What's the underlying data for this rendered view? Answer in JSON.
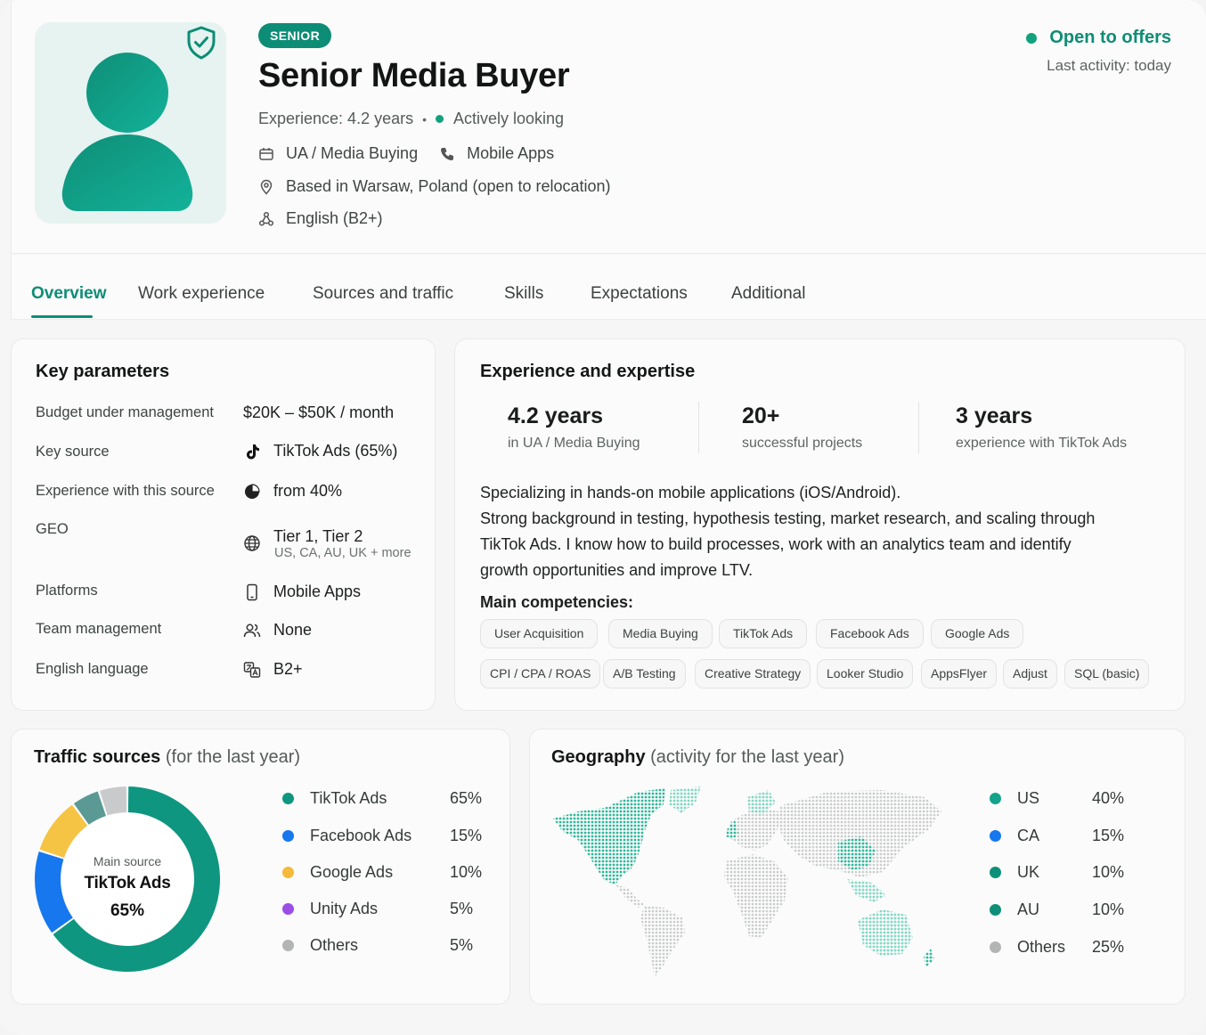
{
  "profile": {
    "badge": "SENIOR",
    "title": "Senior Media Buyer",
    "experience": "Experience: 4.2 years",
    "status": "Actively looking",
    "role_area": "UA / Media Buying",
    "vertical": "Mobile Apps",
    "location": "Based in Warsaw, Poland (open to relocation)",
    "language": "English (B2+)",
    "availability": "Open to offers",
    "last_activity": "Last activity: today",
    "accent_color": "#0d8d75"
  },
  "tabs": [
    {
      "label": "Overview",
      "active": true
    },
    {
      "label": "Work experience"
    },
    {
      "label": "Sources and traffic"
    },
    {
      "label": "Skills"
    },
    {
      "label": "Expectations"
    },
    {
      "label": "Additional"
    }
  ],
  "key_parameters": {
    "title": "Key parameters",
    "rows": [
      {
        "label": "Budget under management",
        "value": "$20K – $50K / month",
        "icon": ""
      },
      {
        "label": "Key source",
        "value": "TikTok Ads (65%)",
        "icon": "tiktok-icon"
      },
      {
        "label": "Experience with this source",
        "value": "from 40%",
        "icon": "pie-icon"
      },
      {
        "label": "GEO",
        "value": "Tier 1, Tier 2",
        "sub": "US, CA, AU, UK + more",
        "icon": "globe-icon"
      },
      {
        "label": "Platforms",
        "value": "Mobile Apps",
        "icon": "phone-icon"
      },
      {
        "label": "Team management",
        "value": "None",
        "icon": "users-icon"
      },
      {
        "label": "English language",
        "value": "B2+",
        "icon": "translate-icon"
      }
    ]
  },
  "expertise": {
    "title": "Experience and expertise",
    "stats": [
      {
        "value": "4.2 years",
        "caption": "in UA / Media Buying"
      },
      {
        "value": "20+",
        "caption": "successful projects"
      },
      {
        "value": "3 years",
        "caption": "experience with TikTok Ads"
      }
    ],
    "description": [
      "Specializing in hands-on mobile applications (iOS/Android).",
      "Strong background in testing, hypothesis testing, market research, and scaling through",
      "TikTok Ads. I know how to build processes, work with an analytics team and identify",
      "growth opportunities and improve LTV."
    ],
    "competencies_title": "Main competencies:",
    "competencies": [
      "User Acquisition",
      "Media Buying",
      "TikTok Ads",
      "Facebook Ads",
      "Google Ads",
      "CPI / CPA / ROAS",
      "A/B Testing",
      "Creative Strategy",
      "Looker Studio",
      "AppsFlyer",
      "Adjust",
      "SQL (basic)"
    ]
  },
  "traffic": {
    "title": "Traffic sources",
    "subtitle": "(for the last year)",
    "center_label": "Main source",
    "center_name": "TikTok Ads",
    "center_value": "65%",
    "legend": [
      {
        "name": "TikTok Ads",
        "value": "65%",
        "color": "#0e9680"
      },
      {
        "name": "Facebook Ads",
        "value": "15%",
        "color": "#1677ee"
      },
      {
        "name": "Google Ads",
        "value": "10%",
        "color": "#f6b93b"
      },
      {
        "name": "Unity Ads",
        "value": "5%",
        "color": "#9b4de6"
      },
      {
        "name": "Others",
        "value": "5%",
        "color": "#b3b5b5"
      }
    ]
  },
  "chart_data": {
    "type": "pie",
    "categories": [
      "TikTok Ads",
      "Facebook Ads",
      "Google Ads",
      "Unity Ads",
      "Others"
    ],
    "values": [
      65,
      15,
      10,
      5,
      5
    ],
    "title": "Traffic sources",
    "colors": [
      "#0e9680",
      "#1677ee",
      "#f6c445",
      "#5b9a94",
      "#c9cacc"
    ]
  },
  "geography": {
    "title": "Geography",
    "subtitle": "(activity for the last year)",
    "legend": [
      {
        "name": "US",
        "value": "40%",
        "color": "#14a38a"
      },
      {
        "name": "CA",
        "value": "15%",
        "color": "#1677ee"
      },
      {
        "name": "UK",
        "value": "10%",
        "color": "#0e8f79"
      },
      {
        "name": "AU",
        "value": "10%",
        "color": "#0e8f79"
      },
      {
        "name": "Others",
        "value": "25%",
        "color": "#b3b5b5"
      }
    ]
  }
}
